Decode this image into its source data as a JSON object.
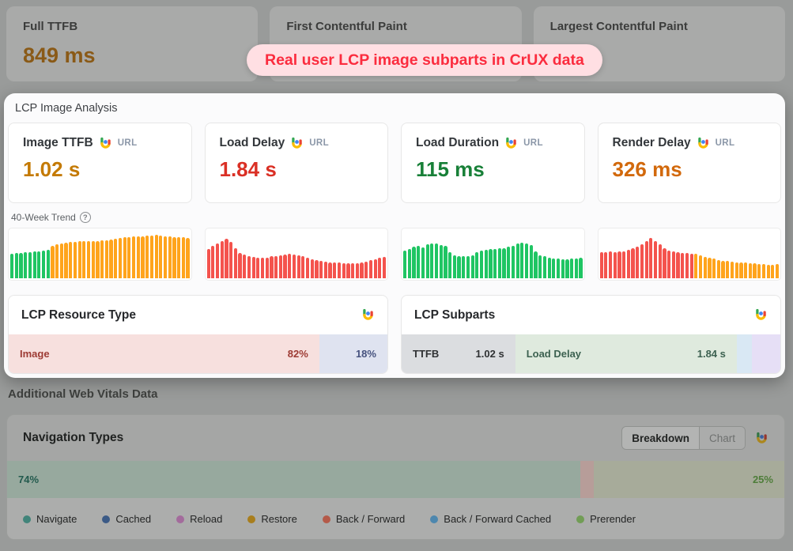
{
  "banner": {
    "text": "Real user LCP image subparts in CrUX data"
  },
  "top_metrics": {
    "cards": [
      {
        "label": "Full TTFB",
        "value": "849 ms",
        "value_color": "#8a5a17"
      },
      {
        "label": "First Contentful Paint",
        "value": ""
      },
      {
        "label": "Largest Contentful Paint",
        "value": ""
      }
    ]
  },
  "panel": {
    "title": "LCP Image Analysis",
    "source_label": "URL",
    "metrics": [
      {
        "label": "Image TTFB",
        "source": "URL",
        "value": "1.02 s",
        "color": "#c47a04"
      },
      {
        "label": "Load Delay",
        "source": "URL",
        "value": "1.84 s",
        "color": "#da3025"
      },
      {
        "label": "Load Duration",
        "source": "URL",
        "value": "115 ms",
        "color": "#188038"
      },
      {
        "label": "Render Delay",
        "source": "URL",
        "value": "326 ms",
        "color": "#d2690c"
      }
    ],
    "trend_label": "40-Week Trend",
    "resource_type_title": "LCP Resource Type",
    "subparts_title": "LCP Subparts"
  },
  "additional": {
    "heading": "Additional Web Vitals Data",
    "navigation_types": {
      "title": "Navigation Types",
      "toggle": {
        "breakdown": "Breakdown",
        "chart": "Chart",
        "active": "Breakdown"
      },
      "legend": [
        {
          "label": "Navigate",
          "color": "#41847a"
        },
        {
          "label": "Cached",
          "color": "#3b5a86"
        },
        {
          "label": "Reload",
          "color": "#a36b9c"
        },
        {
          "label": "Restore",
          "color": "#a87e1d"
        },
        {
          "label": "Back / Forward",
          "color": "#b45a49"
        },
        {
          "label": "Back / Forward Cached",
          "color": "#4d87ae"
        },
        {
          "label": "Prerender",
          "color": "#719d55"
        }
      ]
    }
  },
  "status_colors": {
    "good": "#1fc563",
    "needs_improvement": "#ffa41c",
    "poor": "#f4534d"
  },
  "chart_data": [
    {
      "type": "bar",
      "title": "Image TTFB 40-week trend",
      "x": "weeks 1-40",
      "ylim": [
        0,
        100
      ],
      "values": [
        52,
        53,
        54,
        55,
        55,
        56,
        57,
        58,
        60,
        68,
        71,
        73,
        75,
        76,
        77,
        78,
        78,
        78,
        79,
        79,
        80,
        80,
        81,
        83,
        85,
        86,
        87,
        88,
        89,
        89,
        90,
        90,
        91,
        90,
        89,
        88,
        87,
        86,
        87,
        85
      ],
      "color_segments": [
        {
          "color": "#1fc563",
          "count": 9
        },
        {
          "color": "#ffa41c",
          "count": 31
        }
      ]
    },
    {
      "type": "bar",
      "title": "Load Delay 40-week trend",
      "x": "weeks 1-40",
      "ylim": [
        0,
        100
      ],
      "values": [
        62,
        68,
        74,
        79,
        83,
        76,
        63,
        53,
        50,
        47,
        45,
        44,
        43,
        44,
        46,
        47,
        48,
        50,
        52,
        50,
        48,
        46,
        44,
        40,
        38,
        36,
        35,
        34,
        33,
        33,
        32,
        32,
        31,
        31,
        33,
        35,
        38,
        40,
        43,
        45
      ],
      "color_segments": [
        {
          "color": "#f4534d",
          "count": 40
        }
      ]
    },
    {
      "type": "bar",
      "title": "Load Duration 40-week trend",
      "x": "weeks 1-40",
      "ylim": [
        0,
        100
      ],
      "values": [
        58,
        62,
        66,
        69,
        65,
        72,
        74,
        73,
        70,
        68,
        55,
        48,
        47,
        46,
        47,
        49,
        55,
        58,
        60,
        61,
        62,
        63,
        64,
        66,
        69,
        73,
        75,
        74,
        70,
        57,
        49,
        46,
        44,
        42,
        41,
        40,
        40,
        41,
        42,
        44
      ],
      "color_segments": [
        {
          "color": "#1fc563",
          "count": 40
        }
      ]
    },
    {
      "type": "bar",
      "title": "Render Delay 40-week trend",
      "x": "weeks 1-40",
      "ylim": [
        0,
        100
      ],
      "values": [
        55,
        55,
        56,
        55,
        56,
        57,
        60,
        63,
        67,
        72,
        78,
        85,
        78,
        71,
        64,
        59,
        56,
        55,
        54,
        53,
        52,
        51,
        48,
        45,
        43,
        41,
        39,
        37,
        36,
        35,
        34,
        33,
        33,
        32,
        31,
        30,
        30,
        29,
        29,
        30
      ],
      "color_segments": [
        {
          "color": "#f4534d",
          "count": 21
        },
        {
          "color": "#ffa41c",
          "count": 19
        }
      ]
    },
    {
      "type": "bar",
      "title": "LCP Resource Type",
      "segments": [
        {
          "label": "Image",
          "value": "82%",
          "pct": 82,
          "bg": "#f7e0de",
          "label_color": "#9d3b34",
          "value_color": "#9d3b34"
        },
        {
          "label": "",
          "value": "18%",
          "pct": 18,
          "bg": "#dfe3f0",
          "label_color": "#46527e",
          "value_color": "#46527e"
        }
      ]
    },
    {
      "type": "bar",
      "title": "LCP Subparts",
      "segments": [
        {
          "label": "TTFB",
          "value": "1.02 s",
          "pct": 30,
          "bg": "#dbdde0",
          "label_color": "#2f3133",
          "value_color": "#2f3133"
        },
        {
          "label": "Load Delay",
          "value": "1.84 s",
          "pct": 58.5,
          "bg": "#dfeade",
          "label_color": "#3c6150",
          "value_color": "#3c6150"
        },
        {
          "label": "",
          "value": "",
          "pct": 4,
          "bg": "#d9e8f4"
        },
        {
          "label": "",
          "value": "",
          "pct": 7.5,
          "bg": "#e6dff6"
        }
      ]
    },
    {
      "type": "bar",
      "title": "Navigation Types",
      "segments": [
        {
          "label": "74%",
          "value": "",
          "pct": 73.8,
          "bg": "#97a99e",
          "label_color": "#225a4d"
        },
        {
          "label": "",
          "value": "",
          "pct": 1.7,
          "bg": "#b79d99"
        },
        {
          "label": "",
          "value": "25%",
          "pct": 24.5,
          "bg": "#a7ab9a",
          "value_color": "#4e7d39"
        }
      ]
    }
  ]
}
